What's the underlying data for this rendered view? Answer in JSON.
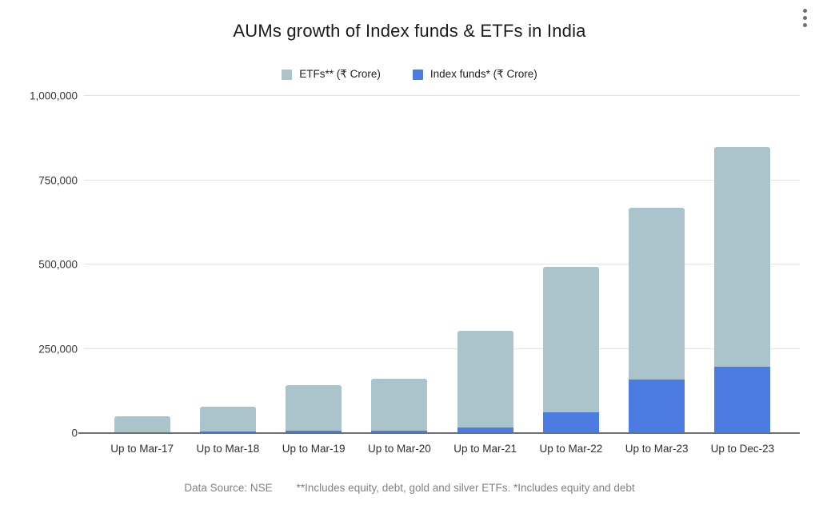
{
  "menu": {
    "tooltip": "More options"
  },
  "chart_data": {
    "type": "bar",
    "stacked": true,
    "title": "AUMs growth of Index funds & ETFs in India",
    "categories": [
      "Up to Mar-17",
      "Up to Mar-18",
      "Up to Mar-19",
      "Up to Mar-20",
      "Up to Mar-21",
      "Up to Mar-22",
      "Up to Mar-23",
      "Up to Dec-23"
    ],
    "series": [
      {
        "name": "ETFs** (₹ Crore)",
        "color": "#abc4cc",
        "values": [
          47500,
          73000,
          137000,
          152000,
          287000,
          432000,
          510000,
          653000
        ]
      },
      {
        "name": "Index funds* (₹ Crore)",
        "color": "#4c7ce2",
        "values": [
          2500,
          4800,
          6000,
          8000,
          17000,
          62000,
          158000,
          196000
        ]
      }
    ],
    "stack_order_bottom_to_top": [
      "Index funds* (₹ Crore)",
      "ETFs** (₹ Crore)"
    ],
    "xlabel": "",
    "ylabel": "",
    "ylim": [
      0,
      1000000
    ],
    "yticks": [
      0,
      250000,
      500000,
      750000,
      1000000
    ],
    "ytick_labels": [
      "0",
      "250,000",
      "500,000",
      "750,000",
      "1,000,000"
    ],
    "legend_position": "top",
    "grid": true
  },
  "footer": {
    "source": "Data Source: NSE",
    "note": "**Includes equity, debt, gold and silver ETFs. *Includes equity and debt"
  },
  "colors": {
    "gridline": "#e4e4e4",
    "axis_line": "#707070",
    "title_text": "#1b1b1b",
    "tick_text": "#383838",
    "footer_text": "#828282"
  }
}
